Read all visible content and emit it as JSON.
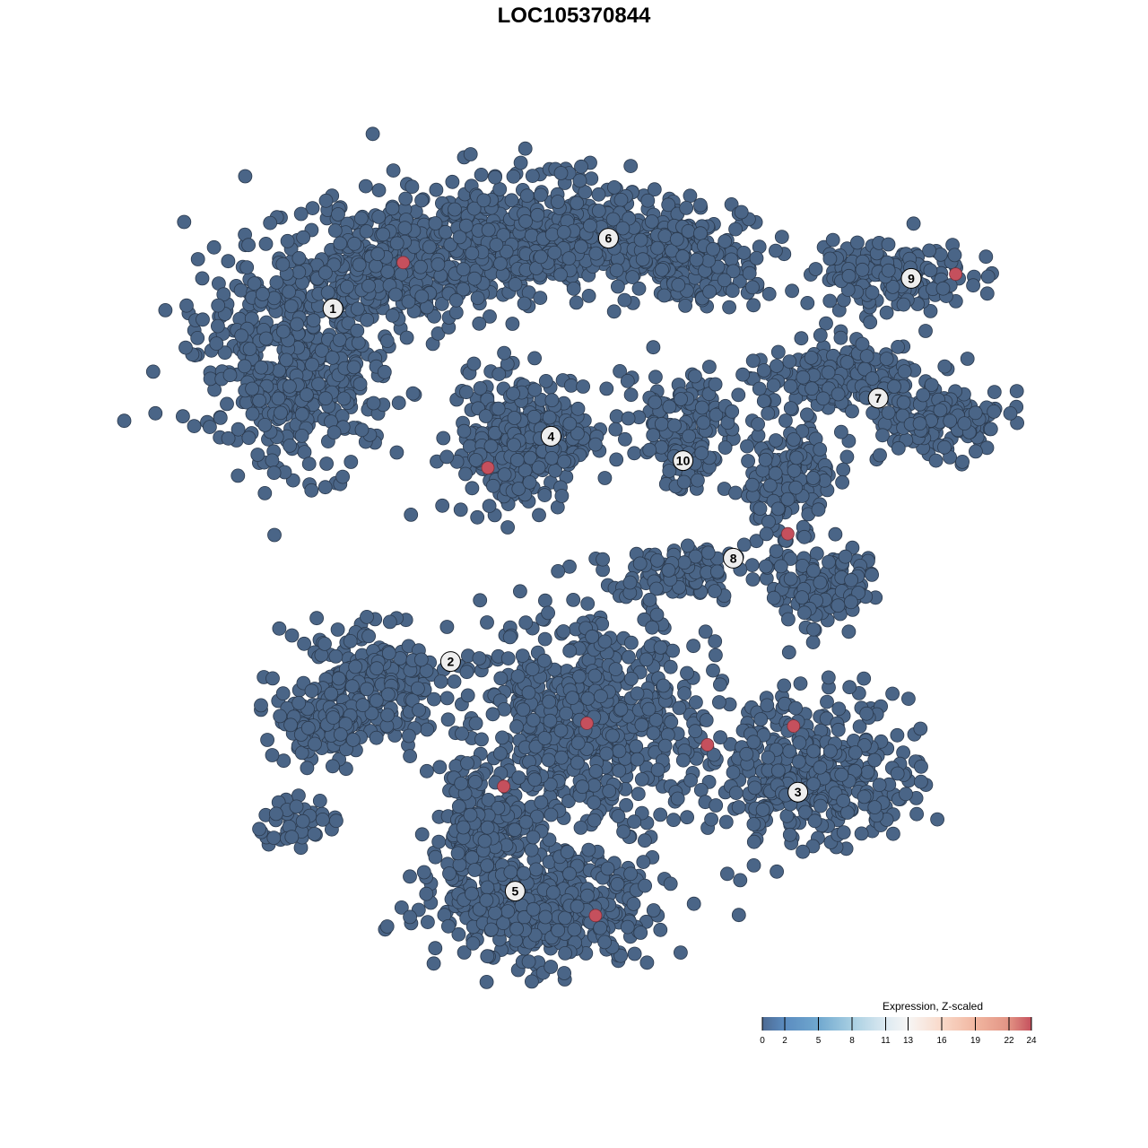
{
  "chart_data": {
    "type": "scatter",
    "title": "LOC105370844",
    "xlabel": "",
    "ylabel": "",
    "grid": false,
    "point_color_default": "#4a6587",
    "point_color_high": "#c5505d",
    "cluster_labels": [
      {
        "label": "1",
        "x": -16.8,
        "y": 18.5
      },
      {
        "label": "2",
        "x": -8.6,
        "y": -6.1
      },
      {
        "label": "3",
        "x": 15.6,
        "y": -15.2
      },
      {
        "label": "4",
        "x": -1.6,
        "y": 9.6
      },
      {
        "label": "5",
        "x": -4.1,
        "y": -22.1
      },
      {
        "label": "6",
        "x": 2.4,
        "y": 23.4
      },
      {
        "label": "7",
        "x": 21.2,
        "y": 12.25
      },
      {
        "label": "8",
        "x": 11.1,
        "y": 1.1
      },
      {
        "label": "9",
        "x": 23.5,
        "y": 20.6
      },
      {
        "label": "10",
        "x": 7.6,
        "y": 7.9
      }
    ],
    "high_expression_points": [
      {
        "x": -11.9,
        "y": 21.7,
        "value": 24
      },
      {
        "x": -6.0,
        "y": 7.4,
        "value": 24
      },
      {
        "x": 26.6,
        "y": 20.9,
        "value": 24
      },
      {
        "x": 14.9,
        "y": 2.8,
        "value": 24
      },
      {
        "x": 0.9,
        "y": -10.4,
        "value": 24
      },
      {
        "x": 9.3,
        "y": -11.9,
        "value": 24
      },
      {
        "x": 15.3,
        "y": -10.6,
        "value": 24
      },
      {
        "x": -4.9,
        "y": -14.8,
        "value": 24
      },
      {
        "x": 1.5,
        "y": -23.8,
        "value": 24
      }
    ],
    "legend": {
      "title": "Expression, Z-scaled",
      "position": "bottom-right",
      "range": [
        0,
        24
      ],
      "ticks": [
        "0",
        "2",
        "5",
        "8",
        "11",
        "13",
        "16",
        "19",
        "22",
        "24"
      ],
      "tick_values": [
        0,
        2,
        5,
        8,
        11,
        13,
        16,
        19,
        22,
        24
      ],
      "colors": [
        "#4d6a93",
        "#5b8cc0",
        "#70a8cf",
        "#a8cfe2",
        "#dce9f1",
        "#f7f6f5",
        "#f9d9c9",
        "#f1b6a0",
        "#e29384",
        "#c5505d"
      ]
    }
  }
}
